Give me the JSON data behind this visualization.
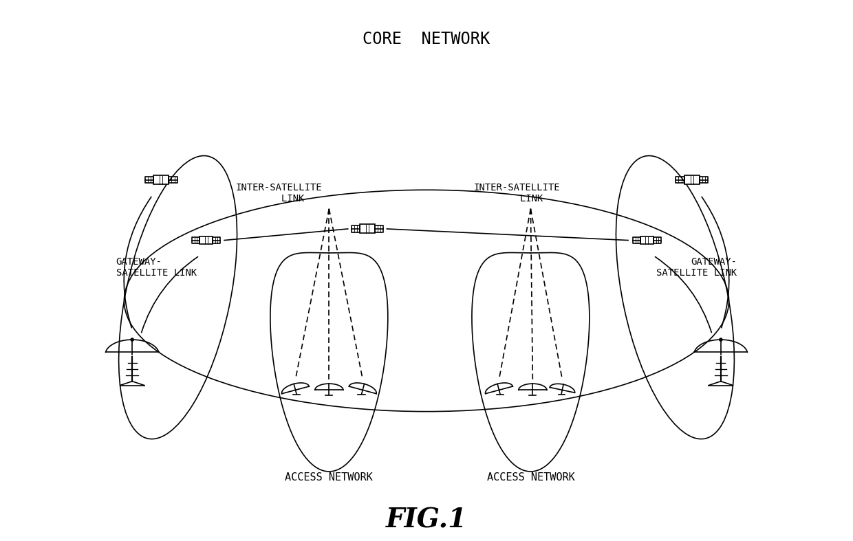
{
  "background_color": "#ffffff",
  "line_color": "#000000",
  "text_color": "#000000",
  "fig_width": 12.4,
  "fig_height": 7.87,
  "dpi": 100,
  "labels": {
    "core_network": "CORE  NETWORK",
    "inter_sat_link_1": "INTER-SATELLITE\n     LINK",
    "inter_sat_link_2": "INTER-SATELLITE\n     LINK",
    "gateway_sat_link_left": "GATEWAY-\nSATELLITE LINK",
    "gateway_sat_link_right": "GATEWAY-\nSATELLITE LINK",
    "access_network_1": "ACCESS NETWORK",
    "access_network_2": "ACCESS NETWORK",
    "fig_label": "FIG.1"
  },
  "font_sizes": {
    "title": 17,
    "label": 10,
    "fig_label": 28
  }
}
